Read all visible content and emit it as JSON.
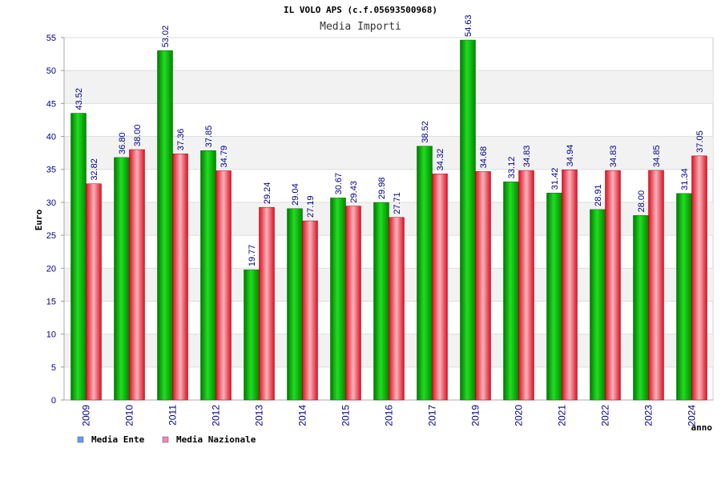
{
  "chart_data": {
    "type": "bar",
    "title": "IL VOLO APS (c.f.05693500968)",
    "subtitle": "Media Importi",
    "ylabel": "Euro",
    "xlabel": "anno",
    "ylim": [
      0,
      55
    ],
    "yticks": [
      0,
      5,
      10,
      15,
      20,
      25,
      30,
      35,
      40,
      45,
      50,
      55
    ],
    "grid": true,
    "legend_position": "bottom-left",
    "categories": [
      "2009",
      "2010",
      "2011",
      "2012",
      "2013",
      "2014",
      "2015",
      "2016",
      "2017",
      "2019",
      "2020",
      "2021",
      "2022",
      "2023",
      "2024"
    ],
    "series": [
      {
        "name": "Media Ente",
        "color": "#00cc00",
        "legend_color": "#6699ff",
        "values": [
          43.52,
          36.8,
          53.02,
          37.85,
          19.77,
          29.04,
          30.67,
          29.98,
          38.52,
          54.63,
          33.12,
          31.42,
          28.91,
          28.0,
          31.34
        ],
        "labels": [
          "43.52",
          "36.80",
          "53.02",
          "37.85",
          "19.77",
          "29.04",
          "30.67",
          "29.98",
          "38.52",
          "54.63",
          "33.12",
          "31.42",
          "28.91",
          "28.00",
          "31.34"
        ]
      },
      {
        "name": "Media Nazionale",
        "color": "#ee2233",
        "legend_color": "#ee88bb",
        "values": [
          32.82,
          38.0,
          37.36,
          34.79,
          29.24,
          27.19,
          29.43,
          27.71,
          34.32,
          34.68,
          34.83,
          34.94,
          34.83,
          34.85,
          37.05
        ],
        "labels": [
          "32.82",
          "38.00",
          "37.36",
          "34.79",
          "29.24",
          "27.19",
          "29.43",
          "27.71",
          "34.32",
          "34.68",
          "34.83",
          "34.94",
          "34.83",
          "34.85",
          "37.05"
        ]
      }
    ]
  }
}
